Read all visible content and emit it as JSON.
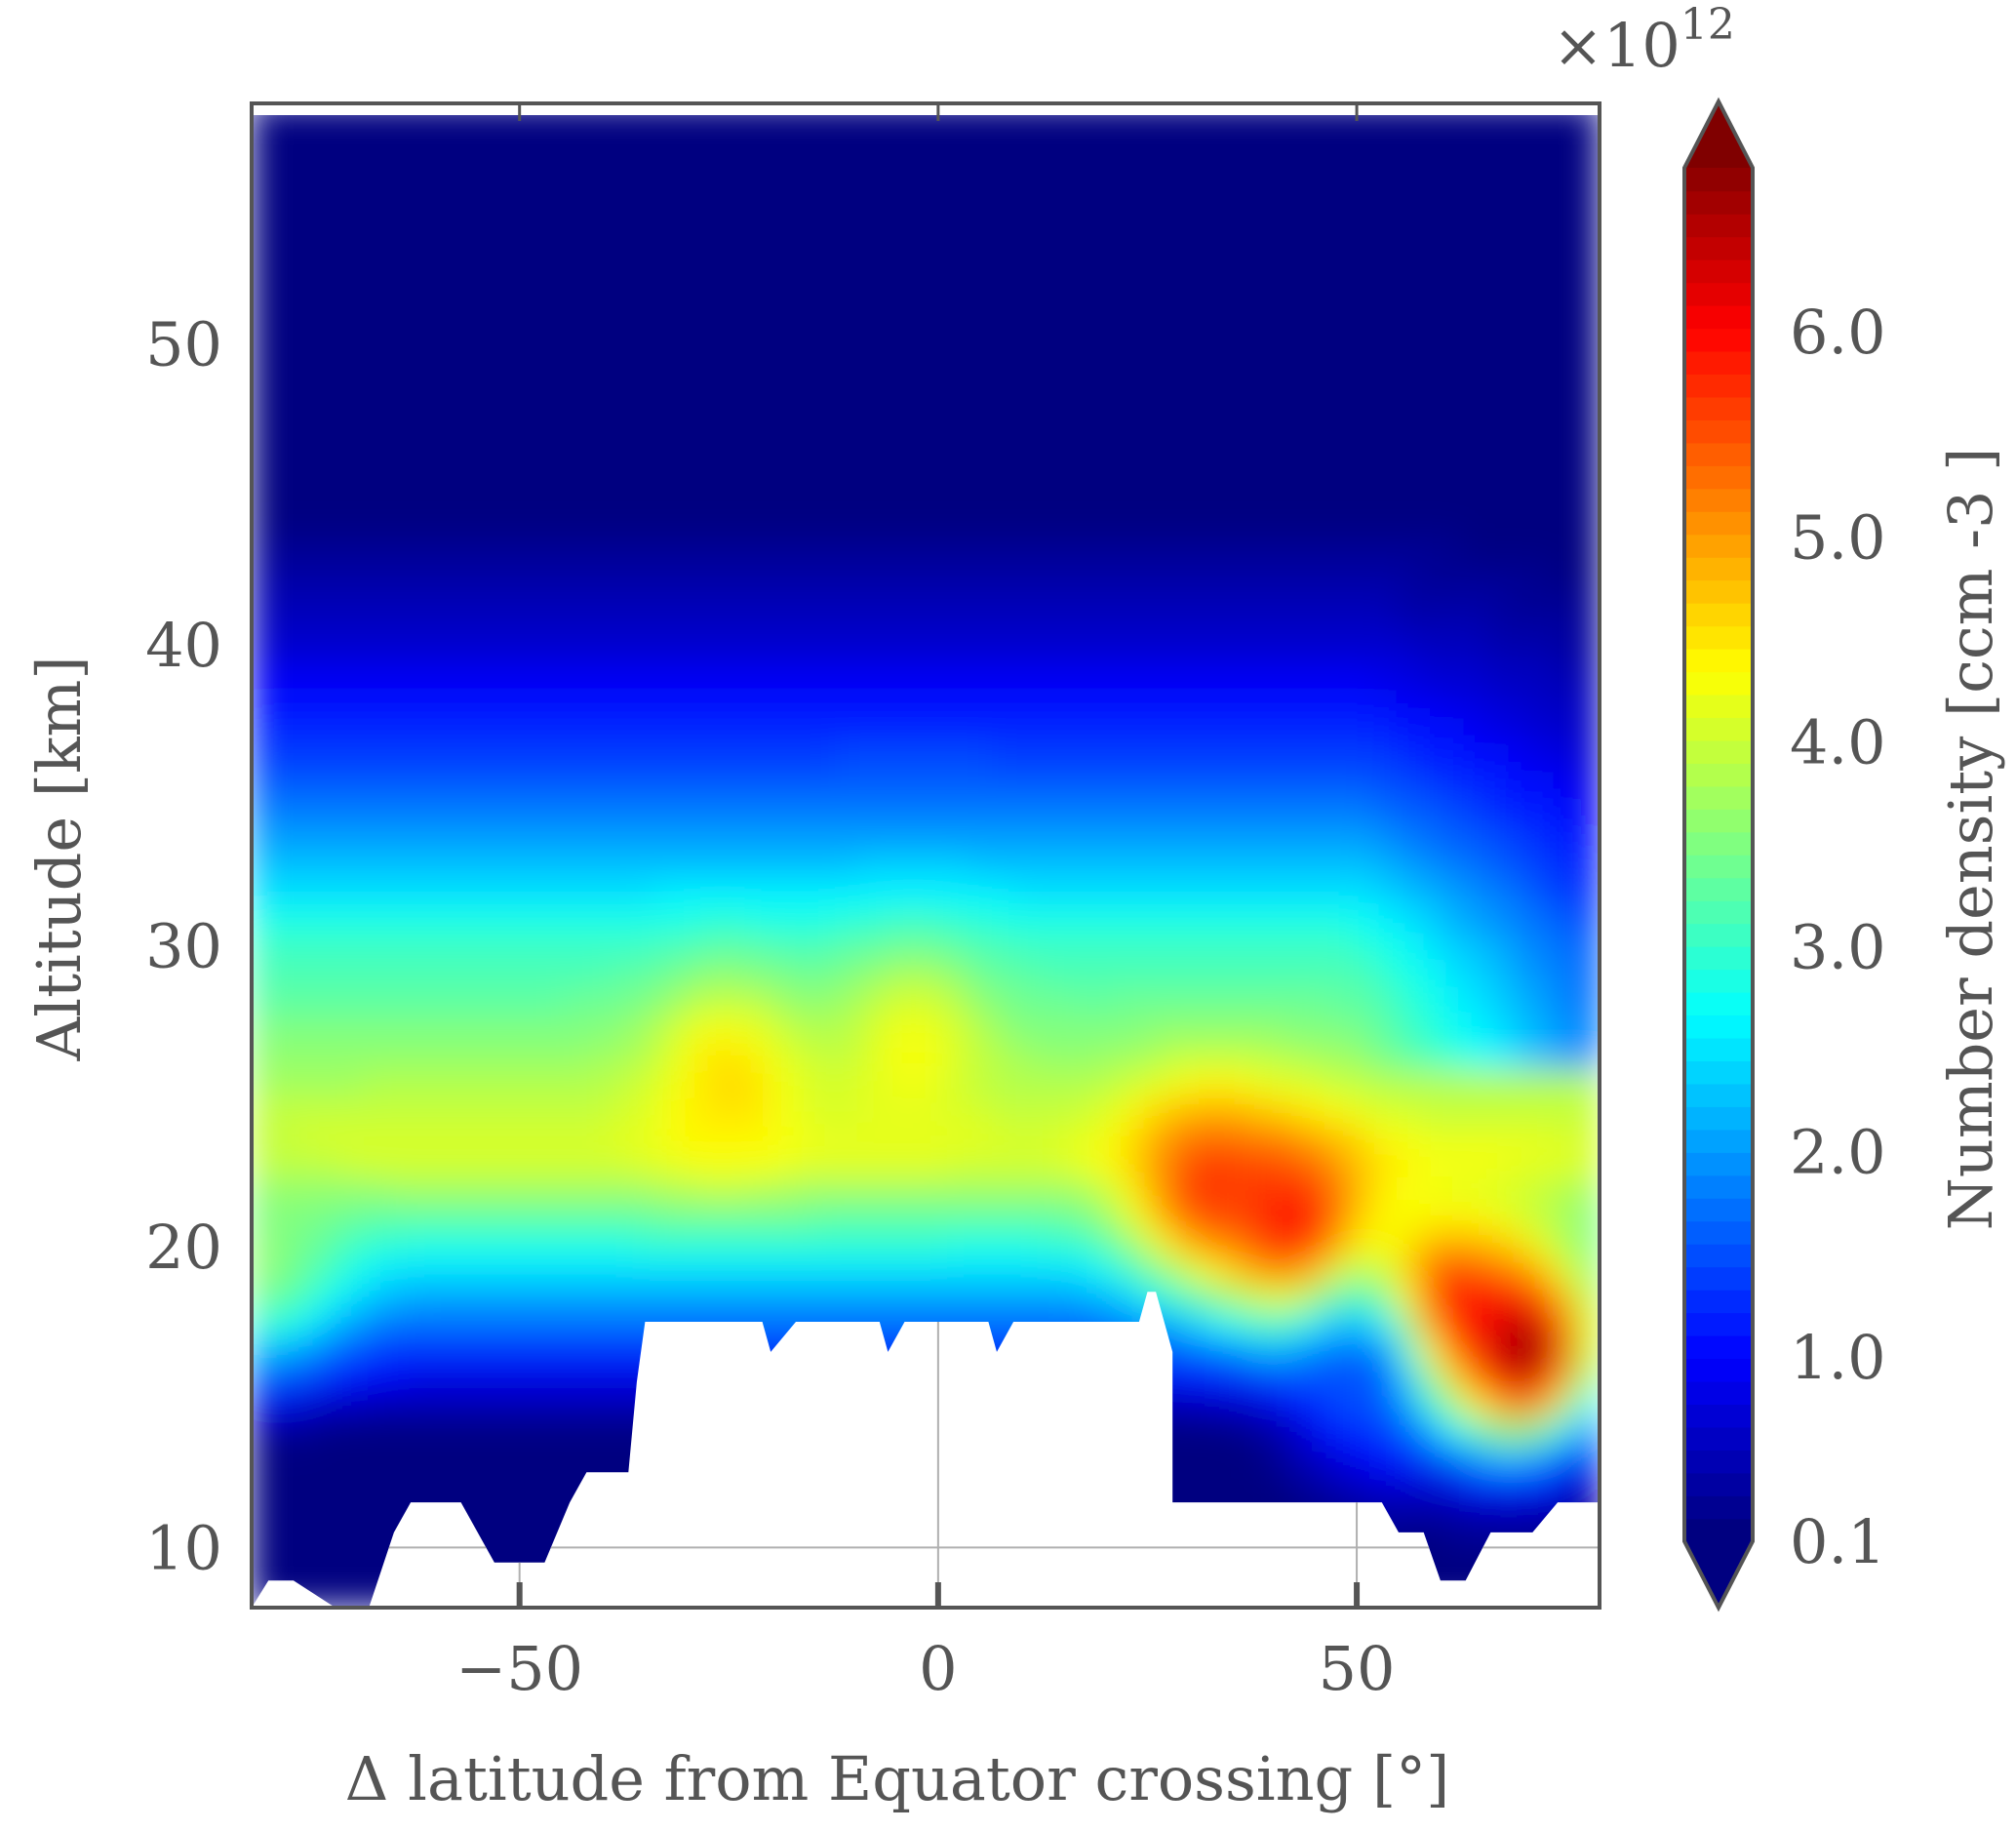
{
  "chart_data": {
    "type": "heatmap",
    "title": "",
    "xlabel": "Δ latitude from Equator crossing [°]",
    "ylabel": "Altitude [km]",
    "xlim": [
      -82,
      79
    ],
    "ylim": [
      8,
      58
    ],
    "x_ticks": [
      -50,
      0,
      50
    ],
    "x_tick_labels": [
      "−50",
      "0",
      "50"
    ],
    "y_ticks": [
      10,
      20,
      30,
      40,
      50
    ],
    "y_tick_labels": [
      "10",
      "20",
      "30",
      "40",
      "50"
    ],
    "grid": true,
    "colorbar": {
      "label": "Number density [ccm -3 ]",
      "multiplier": "×10",
      "multiplier_exponent": "12",
      "range": [
        0.1,
        6.8
      ],
      "ticks": [
        0.1,
        1.0,
        2.0,
        3.0,
        4.0,
        5.0,
        6.0
      ],
      "tick_labels": [
        "0.1",
        "1.0",
        "2.0",
        "3.0",
        "4.0",
        "5.0",
        "6.0"
      ],
      "extend": "both",
      "colormap": "jet",
      "levels": 60
    },
    "field_peaks": [
      {
        "x": -80,
        "y": 19.5,
        "value": 3.6
      },
      {
        "x": -25,
        "y": 25.5,
        "value": 4.6
      },
      {
        "x": -3,
        "y": 26.5,
        "value": 4.3
      },
      {
        "x": 32,
        "y": 22.0,
        "value": 5.6
      },
      {
        "x": 43,
        "y": 20.5,
        "value": 6.1
      },
      {
        "x": 60,
        "y": 17.5,
        "value": 6.7
      },
      {
        "x": 70,
        "y": 16.5,
        "value": 6.8
      },
      {
        "x": 51,
        "y": 15.5,
        "value": 1.5
      }
    ],
    "missing_data_floor": [
      {
        "x": -82,
        "y": 8.0
      },
      {
        "x": -80,
        "y": 8.9
      },
      {
        "x": -77,
        "y": 8.9
      },
      {
        "x": -72,
        "y": 8.0
      },
      {
        "x": -68,
        "y": 8.0
      },
      {
        "x": -65,
        "y": 10.5
      },
      {
        "x": -63,
        "y": 11.5
      },
      {
        "x": -57,
        "y": 11.5
      },
      {
        "x": -53,
        "y": 9.5
      },
      {
        "x": -47,
        "y": 9.5
      },
      {
        "x": -44,
        "y": 11.5
      },
      {
        "x": -42,
        "y": 12.5
      },
      {
        "x": -37,
        "y": 12.5
      },
      {
        "x": -36,
        "y": 15.5
      },
      {
        "x": -35,
        "y": 17.5
      },
      {
        "x": -21,
        "y": 17.5
      },
      {
        "x": -20,
        "y": 16.5
      },
      {
        "x": -17,
        "y": 17.5
      },
      {
        "x": -7,
        "y": 17.5
      },
      {
        "x": -6,
        "y": 16.5
      },
      {
        "x": -4,
        "y": 17.5
      },
      {
        "x": 6,
        "y": 17.5
      },
      {
        "x": 7,
        "y": 16.5
      },
      {
        "x": 9,
        "y": 17.5
      },
      {
        "x": 24,
        "y": 17.5
      },
      {
        "x": 25,
        "y": 18.5
      },
      {
        "x": 26,
        "y": 18.5
      },
      {
        "x": 28,
        "y": 16.5
      },
      {
        "x": 28,
        "y": 11.5
      },
      {
        "x": 53,
        "y": 11.5
      },
      {
        "x": 55,
        "y": 10.5
      },
      {
        "x": 58,
        "y": 10.5
      },
      {
        "x": 60,
        "y": 8.9
      },
      {
        "x": 63,
        "y": 8.9
      },
      {
        "x": 66,
        "y": 10.5
      },
      {
        "x": 71,
        "y": 10.5
      },
      {
        "x": 74,
        "y": 11.5
      },
      {
        "x": 79,
        "y": 11.5
      }
    ]
  }
}
